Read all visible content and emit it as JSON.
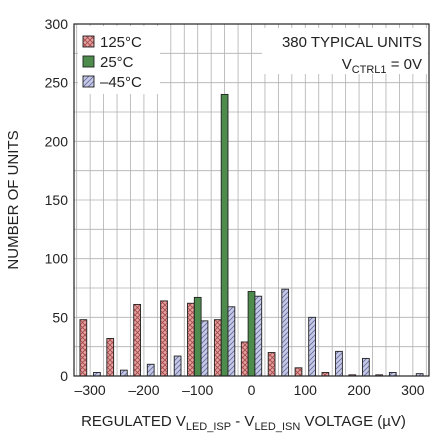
{
  "chart_data": {
    "type": "bar",
    "xlabel": {
      "main": "REGULATED V",
      "sub1": "LED_ISP",
      "mid": " - V",
      "sub2": "LED_ISN",
      "end": " VOLTAGE (µV)"
    },
    "ylabel": "NUMBER OF UNITS",
    "xlim": [
      -330,
      330
    ],
    "ylim": [
      0,
      300
    ],
    "x_ticks": [
      -300,
      -200,
      -100,
      0,
      100,
      200,
      300
    ],
    "x_tick_labels": [
      "–300",
      "–200",
      "–100",
      "0",
      "100",
      "200",
      "300"
    ],
    "y_ticks": [
      0,
      50,
      100,
      150,
      200,
      250,
      300
    ],
    "grid": true,
    "legend_position": "top-left",
    "annotation": {
      "line1": "380 TYPICAL UNITS",
      "line2_main": "V",
      "line2_sub": "CTRL1",
      "line2_end": " = 0V"
    },
    "categories": [
      -300,
      -250,
      -200,
      -150,
      -100,
      -50,
      0,
      50,
      100,
      150,
      200,
      250,
      300
    ],
    "series": [
      {
        "name": "125°C",
        "color": "#d98c8c",
        "pattern": "crosshatch",
        "values": [
          48,
          32,
          61,
          64,
          62,
          48,
          29,
          20,
          7,
          3,
          1,
          1,
          0
        ]
      },
      {
        "name": "25°C",
        "color": "#4d8c4d",
        "pattern": "solid",
        "values": [
          0,
          0,
          0,
          0,
          67,
          240,
          72,
          0,
          0,
          0,
          0,
          0,
          0
        ]
      },
      {
        "name": "–45°C",
        "color": "#b4b8d8",
        "pattern": "diagonal",
        "values": [
          3,
          5,
          10,
          17,
          47,
          59,
          68,
          74,
          50,
          21,
          15,
          3,
          2
        ]
      }
    ]
  }
}
